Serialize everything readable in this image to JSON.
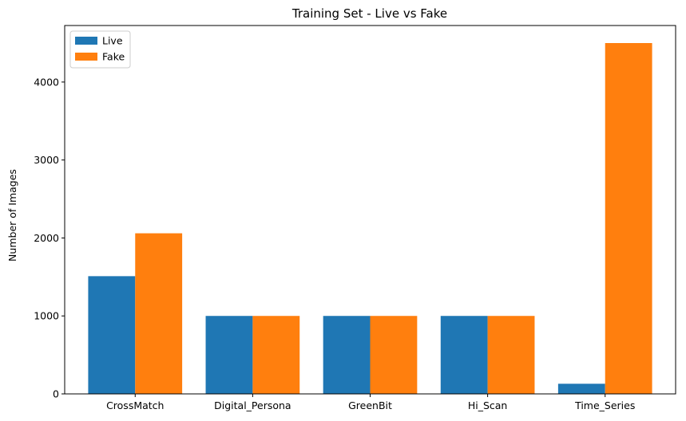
{
  "chart_data": {
    "type": "bar",
    "title": "Training Set - Live vs Fake",
    "xlabel": "",
    "ylabel": "Number of Images",
    "categories": [
      "CrossMatch",
      "Digital_Persona",
      "GreenBit",
      "Hi_Scan",
      "Time_Series"
    ],
    "series": [
      {
        "name": "Live",
        "color": "#1f77b4",
        "values": [
          1510,
          1000,
          1000,
          1000,
          130
        ]
      },
      {
        "name": "Fake",
        "color": "#ff7f0e",
        "values": [
          2060,
          1000,
          1000,
          1000,
          4500
        ]
      }
    ],
    "yticks": [
      0,
      1000,
      2000,
      3000,
      4000
    ],
    "ylim": [
      0,
      4725
    ],
    "grid": false,
    "legend_position": "top-left"
  }
}
